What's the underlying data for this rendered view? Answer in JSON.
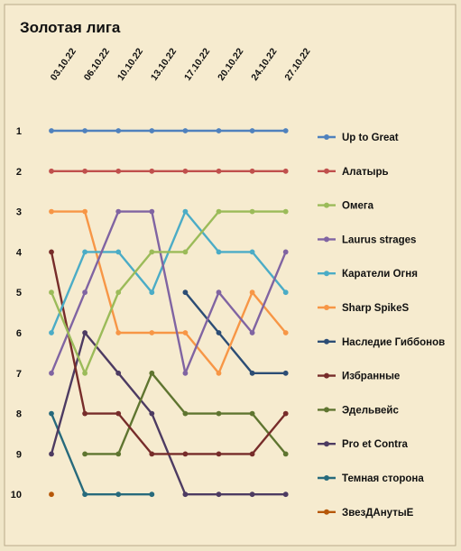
{
  "chart_data": {
    "type": "line",
    "title": "Золотая лига",
    "x": [
      "03.10.22",
      "06.10.22",
      "10.10.22",
      "13.10.22",
      "17.10.22",
      "20.10.22",
      "24.10.22",
      "27.10.22"
    ],
    "y_ticks": [
      "1",
      "2",
      "3",
      "4",
      "5",
      "6",
      "7",
      "8",
      "9",
      "10"
    ],
    "ylim": [
      1,
      10
    ],
    "y_reversed": true,
    "legend_position": "right",
    "grid": false,
    "series": [
      {
        "name": "Up to Great",
        "color": "#4f81bd",
        "values": [
          1,
          1,
          1,
          1,
          1,
          1,
          1,
          1
        ]
      },
      {
        "name": "Алатырь",
        "color": "#c0504d",
        "values": [
          2,
          2,
          2,
          2,
          2,
          2,
          2,
          2
        ]
      },
      {
        "name": "Омега",
        "color": "#9bbb59",
        "values": [
          5,
          7,
          5,
          4,
          4,
          3,
          3,
          3
        ]
      },
      {
        "name": "Laurus strages",
        "color": "#8064a2",
        "values": [
          7,
          5,
          3,
          3,
          7,
          5,
          6,
          4
        ]
      },
      {
        "name": "Каратели Огня",
        "color": "#4bacc6",
        "values": [
          6,
          4,
          4,
          5,
          3,
          4,
          4,
          5
        ]
      },
      {
        "name": "Sharp SpikeS",
        "color": "#f79646",
        "values": [
          3,
          3,
          6,
          6,
          6,
          7,
          5,
          6
        ]
      },
      {
        "name": "Наследие Гиббонов",
        "color": "#2c4d75",
        "values": [
          null,
          null,
          null,
          null,
          5,
          6,
          7,
          7
        ]
      },
      {
        "name": "Избранные",
        "color": "#772c2a",
        "values": [
          4,
          8,
          8,
          9,
          9,
          9,
          9,
          8
        ]
      },
      {
        "name": "Эдельвейс",
        "color": "#5f7530",
        "values": [
          null,
          9,
          9,
          7,
          8,
          8,
          8,
          9
        ]
      },
      {
        "name": "Pro et Contra",
        "color": "#4d3b62",
        "values": [
          9,
          6,
          7,
          8,
          10,
          10,
          10,
          10
        ]
      },
      {
        "name": "Темная сторона",
        "color": "#276a7c",
        "values": [
          8,
          10,
          10,
          10,
          null,
          null,
          null,
          null
        ]
      },
      {
        "name": "ЗвезДАнутыЕ",
        "color": "#b65708",
        "values": [
          10,
          null,
          null,
          null,
          null,
          null,
          null,
          null
        ]
      }
    ]
  }
}
